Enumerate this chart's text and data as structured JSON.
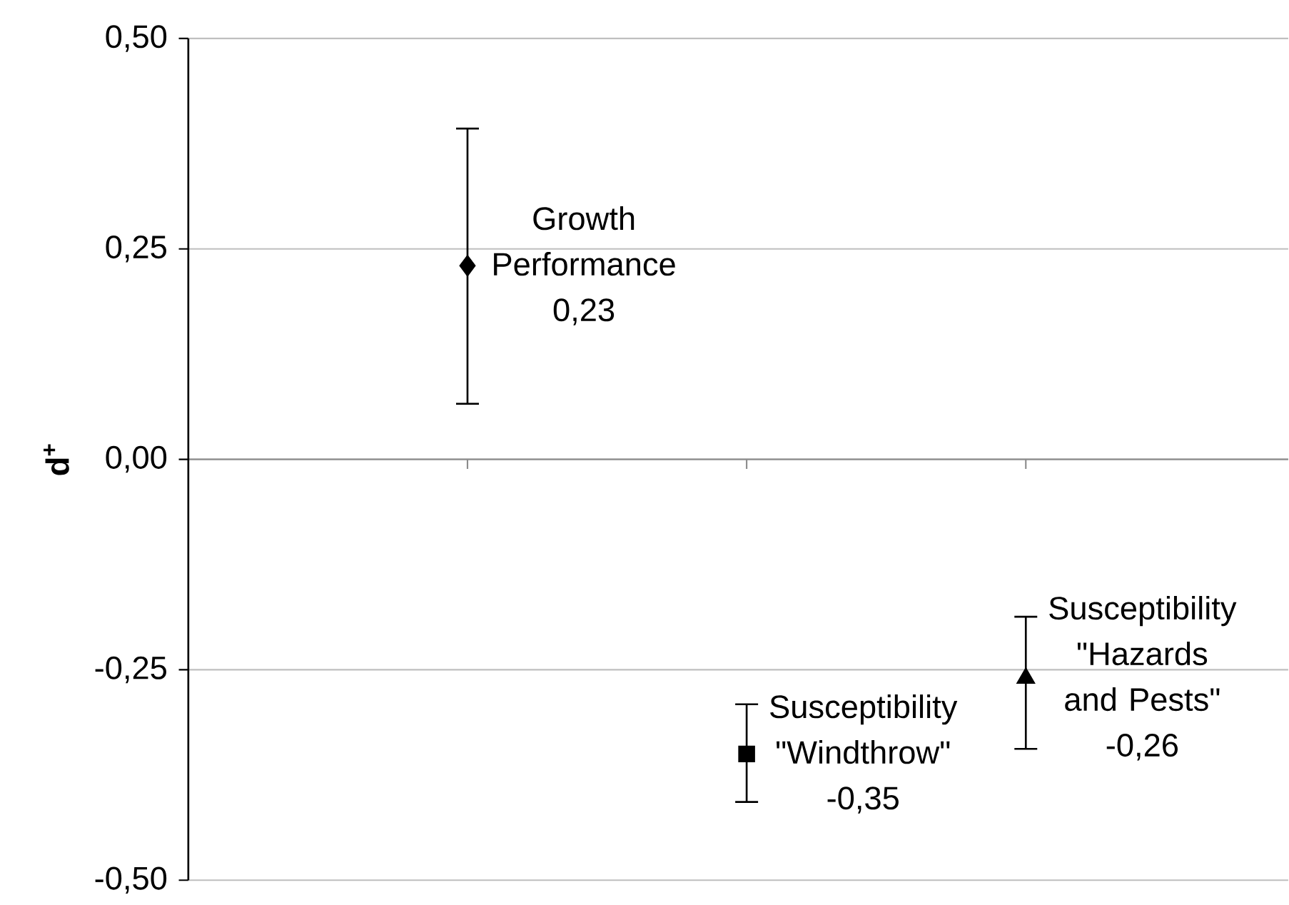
{
  "chart_data": {
    "type": "scatter",
    "ylabel": "d$^{+}$",
    "categories": [
      null,
      null,
      null
    ],
    "ylim": [
      -0.5,
      0.5
    ],
    "yticks": [
      {
        "value": -0.5,
        "label": "-0,50"
      },
      {
        "value": -0.25,
        "label": "-0,25"
      },
      {
        "value": 0,
        "label": "0,00"
      },
      {
        "value": 0.25,
        "label": "0,25"
      },
      {
        "value": 0.5,
        "label": "0,50"
      }
    ],
    "grid": "y",
    "tick_labels": "y",
    "annotations": [
      "0,23",
      "-0,35",
      "-0,26"
    ],
    "series": [
      {
        "name": "Growth Performance",
        "color": "#000000",
        "marker": "diamond",
        "values": [
          0.23,
          null,
          null
        ],
        "errors": [
          [
            0.066,
            0.393
          ],
          null,
          null
        ]
      },
      {
        "name": "Susceptibility \"Windthrow\"",
        "color": "#000000",
        "marker": "square",
        "values": [
          null,
          -0.35,
          null
        ],
        "errors": [
          null,
          [
            -0.407,
            -0.291
          ],
          null
        ]
      },
      {
        "name": "Susceptibility \"Hazards and Pests\"",
        "color": "#000000",
        "marker": "triangle",
        "values": [
          null,
          null,
          -0.26
        ],
        "errors": [
          null,
          null,
          [
            -0.344,
            -0.187
          ]
        ]
      }
    ]
  }
}
